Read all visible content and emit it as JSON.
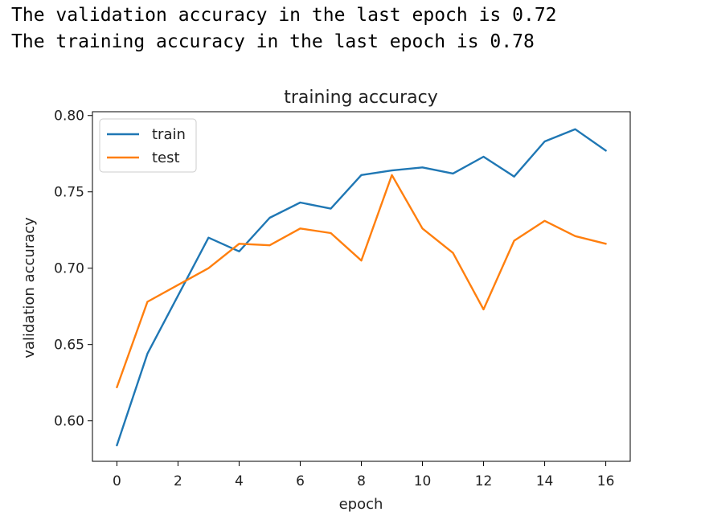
{
  "output": {
    "line1": "The validation accuracy in the last epoch is 0.72",
    "line2": "The training accuracy in the last epoch is 0.78"
  },
  "chart_data": {
    "type": "line",
    "title": "training accuracy",
    "xlabel": "epoch",
    "ylabel": "validation accuracy",
    "xlim": [
      -0.8,
      16.8
    ],
    "ylim": [
      0.5735,
      0.8025
    ],
    "xticks": [
      0,
      2,
      4,
      6,
      8,
      10,
      12,
      14,
      16
    ],
    "yticks": [
      0.6,
      0.65,
      0.7,
      0.75,
      0.8
    ],
    "ytick_labels": [
      "0.60",
      "0.65",
      "0.70",
      "0.75",
      "0.80"
    ],
    "x": [
      0,
      1,
      2,
      3,
      4,
      5,
      6,
      7,
      8,
      9,
      10,
      11,
      12,
      13,
      14,
      15,
      16
    ],
    "series": [
      {
        "name": "train",
        "color": "#1f77b4",
        "values": [
          0.584,
          0.644,
          0.682,
          0.72,
          0.711,
          0.733,
          0.743,
          0.739,
          0.761,
          0.764,
          0.766,
          0.762,
          0.773,
          0.76,
          0.783,
          0.791,
          0.777
        ]
      },
      {
        "name": "test",
        "color": "#ff7f0e",
        "values": [
          0.622,
          0.678,
          0.689,
          0.7,
          0.716,
          0.715,
          0.726,
          0.723,
          0.705,
          0.761,
          0.726,
          0.71,
          0.673,
          0.718,
          0.731,
          0.721,
          0.716
        ]
      }
    ],
    "legend_position": "upper left",
    "grid": false
  }
}
